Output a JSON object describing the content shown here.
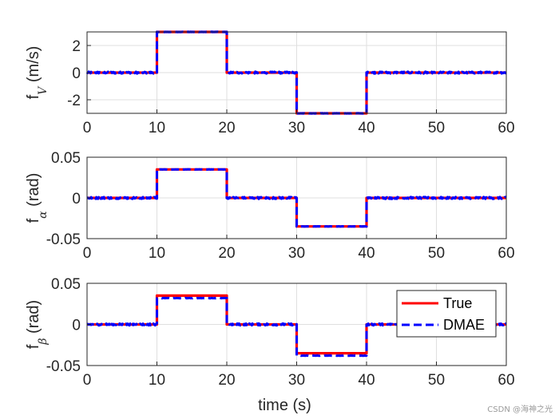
{
  "chart_data": [
    {
      "type": "line",
      "ylabel_main": "f",
      "ylabel_sub": "V",
      "ylabel_unit": " (m/s)",
      "xlim": [
        0,
        60
      ],
      "ylim": [
        -3,
        3
      ],
      "xticks": [
        0,
        10,
        20,
        30,
        40,
        50,
        60
      ],
      "yticks": [
        -2,
        0,
        2
      ],
      "ytick_labels": [
        "-2",
        "0",
        "2"
      ],
      "grid": true,
      "series": [
        {
          "name": "True",
          "color": "#ff0000",
          "style": "solid",
          "steps": [
            [
              0,
              10,
              0
            ],
            [
              10,
              20,
              3
            ],
            [
              20,
              30,
              0
            ],
            [
              30,
              40,
              -3
            ],
            [
              40,
              60,
              0
            ]
          ]
        },
        {
          "name": "DMAE",
          "color": "#0000ff",
          "style": "dashed",
          "noise": 0.07,
          "steps": [
            [
              0,
              10,
              0
            ],
            [
              10,
              20,
              3
            ],
            [
              20,
              30,
              0
            ],
            [
              30,
              40,
              -3
            ],
            [
              40,
              60,
              0
            ]
          ]
        }
      ]
    },
    {
      "type": "line",
      "ylabel_main": "f",
      "ylabel_sub": "α",
      "ylabel_unit": " (rad)",
      "xlim": [
        0,
        60
      ],
      "ylim": [
        -0.05,
        0.05
      ],
      "xticks": [
        0,
        10,
        20,
        30,
        40,
        50,
        60
      ],
      "yticks": [
        -0.05,
        0,
        0.05
      ],
      "ytick_labels": [
        "-0.05",
        "0",
        "0.05"
      ],
      "grid": true,
      "series": [
        {
          "name": "True",
          "color": "#ff0000",
          "style": "solid",
          "steps": [
            [
              0,
              10,
              0
            ],
            [
              10,
              20,
              0.035
            ],
            [
              20,
              30,
              0
            ],
            [
              30,
              40,
              -0.035
            ],
            [
              40,
              60,
              0
            ]
          ]
        },
        {
          "name": "DMAE",
          "color": "#0000ff",
          "style": "dashed",
          "noise": 0.0012,
          "steps": [
            [
              0,
              10,
              0
            ],
            [
              10,
              20,
              0.035
            ],
            [
              20,
              30,
              0
            ],
            [
              30,
              40,
              -0.035
            ],
            [
              40,
              60,
              0
            ]
          ]
        }
      ]
    },
    {
      "type": "line",
      "ylabel_main": "f",
      "ylabel_sub": "β",
      "ylabel_unit": " (rad)",
      "xlim": [
        0,
        60
      ],
      "ylim": [
        -0.05,
        0.05
      ],
      "xticks": [
        0,
        10,
        20,
        30,
        40,
        50,
        60
      ],
      "yticks": [
        -0.05,
        0,
        0.05
      ],
      "ytick_labels": [
        "-0.05",
        "0",
        "0.05"
      ],
      "grid": true,
      "xlabel": "time (s)",
      "legend": {
        "position": "right",
        "entries": [
          "True",
          "DMAE"
        ]
      },
      "series": [
        {
          "name": "True",
          "color": "#ff0000",
          "style": "solid",
          "steps": [
            [
              0,
              10,
              0
            ],
            [
              10,
              20,
              0.035
            ],
            [
              20,
              30,
              0
            ],
            [
              30,
              40,
              -0.035
            ],
            [
              40,
              60,
              0
            ]
          ]
        },
        {
          "name": "DMAE",
          "color": "#0000ff",
          "style": "dashed",
          "noise": 0.0012,
          "steps": [
            [
              0,
              10,
              0
            ],
            [
              10,
              20,
              0.032
            ],
            [
              20,
              30,
              0
            ],
            [
              30,
              40,
              -0.038
            ],
            [
              40,
              60,
              0
            ]
          ]
        }
      ]
    }
  ],
  "watermark": "CSDN @海神之光"
}
